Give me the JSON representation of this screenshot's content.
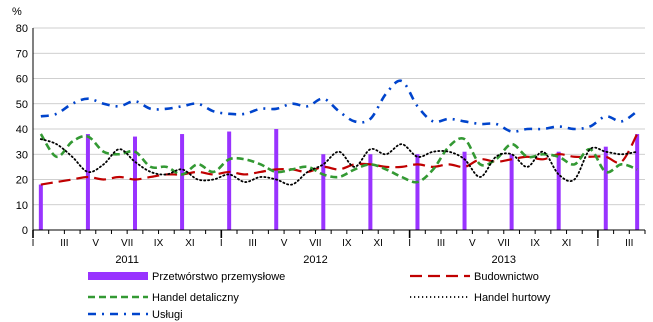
{
  "chart_data": {
    "type": "bar+line",
    "y_unit": "%",
    "ylim": [
      0,
      80
    ],
    "y_ticks": [
      0,
      10,
      20,
      30,
      40,
      50,
      60,
      70,
      80
    ],
    "x": [
      "2011-01",
      "2011-02",
      "2011-03",
      "2011-04",
      "2011-05",
      "2011-06",
      "2011-07",
      "2011-08",
      "2011-09",
      "2011-10",
      "2011-11",
      "2011-12",
      "2012-01",
      "2012-02",
      "2012-03",
      "2012-04",
      "2012-05",
      "2012-06",
      "2012-07",
      "2012-08",
      "2012-09",
      "2012-10",
      "2012-11",
      "2012-12",
      "2013-01",
      "2013-02",
      "2013-03",
      "2013-04",
      "2013-05",
      "2013-06",
      "2013-07",
      "2013-08",
      "2013-09",
      "2013-10",
      "2013-11",
      "2013-12",
      "2014-01",
      "2014-02",
      "2014-03"
    ],
    "x_tick_labels": [
      "I",
      "",
      "III",
      "",
      "V",
      "",
      "VII",
      "",
      "IX",
      "",
      "XI",
      "",
      "I",
      "",
      "III",
      "",
      "V",
      "",
      "VII",
      "",
      "IX",
      "",
      "XI",
      "",
      "I",
      "",
      "III",
      "",
      "V",
      "",
      "VII",
      "",
      "IX",
      "",
      "XI",
      "",
      "I",
      "",
      "III"
    ],
    "years": [
      "2011",
      "2012",
      "2013"
    ],
    "grid": "horizontal",
    "legend_position": "bottom",
    "series": [
      {
        "name": "Przetwórstwo przemysłowe",
        "kind": "bar",
        "color": "#9933ff",
        "values": [
          18,
          null,
          null,
          38,
          null,
          null,
          37,
          null,
          null,
          38,
          null,
          null,
          39,
          null,
          null,
          40,
          null,
          null,
          30,
          null,
          null,
          30,
          null,
          null,
          30,
          null,
          null,
          31,
          null,
          null,
          30,
          null,
          null,
          31,
          null,
          null,
          33,
          null,
          38
        ]
      },
      {
        "name": "Budownictwo",
        "kind": "line",
        "style": "long-dash",
        "color": "#c00000",
        "values": [
          18,
          19,
          20,
          21,
          20,
          21,
          20,
          21,
          22,
          22,
          23,
          22,
          23,
          22,
          23,
          24,
          24,
          23,
          25,
          24,
          26,
          26,
          25,
          25,
          26,
          25,
          26,
          25,
          28,
          27,
          28,
          29,
          28,
          30,
          29,
          29,
          29,
          27,
          38
        ]
      },
      {
        "name": "Handel detaliczny",
        "kind": "line",
        "style": "dash",
        "color": "#339933",
        "values": [
          38,
          29,
          35,
          37,
          31,
          30,
          31,
          25,
          25,
          22,
          26,
          23,
          28,
          28,
          26,
          23,
          24,
          25,
          22,
          21,
          24,
          26,
          24,
          21,
          19,
          24,
          33,
          36,
          26,
          28,
          34,
          29,
          30,
          29,
          26,
          32,
          23,
          26,
          24
        ]
      },
      {
        "name": "Handel hurtowy",
        "kind": "line",
        "style": "dot",
        "color": "#000000",
        "values": [
          36,
          34,
          29,
          23,
          26,
          32,
          27,
          23,
          22,
          24,
          20,
          20,
          22,
          19,
          21,
          20,
          18,
          23,
          26,
          31,
          25,
          32,
          30,
          34,
          29,
          31,
          31,
          28,
          21,
          29,
          30,
          25,
          31,
          22,
          20,
          32,
          31,
          30,
          31
        ]
      },
      {
        "name": "Usługi",
        "kind": "line",
        "style": "dash-dot",
        "color": "#0044cc",
        "values": [
          45,
          46,
          50,
          52,
          50,
          49,
          51,
          48,
          48,
          49,
          50,
          47,
          46,
          46,
          48,
          48,
          50,
          49,
          52,
          47,
          43,
          44,
          54,
          59,
          49,
          43,
          44,
          43,
          42,
          42,
          39,
          40,
          40,
          41,
          40,
          41,
          45,
          43,
          47
        ]
      }
    ]
  }
}
